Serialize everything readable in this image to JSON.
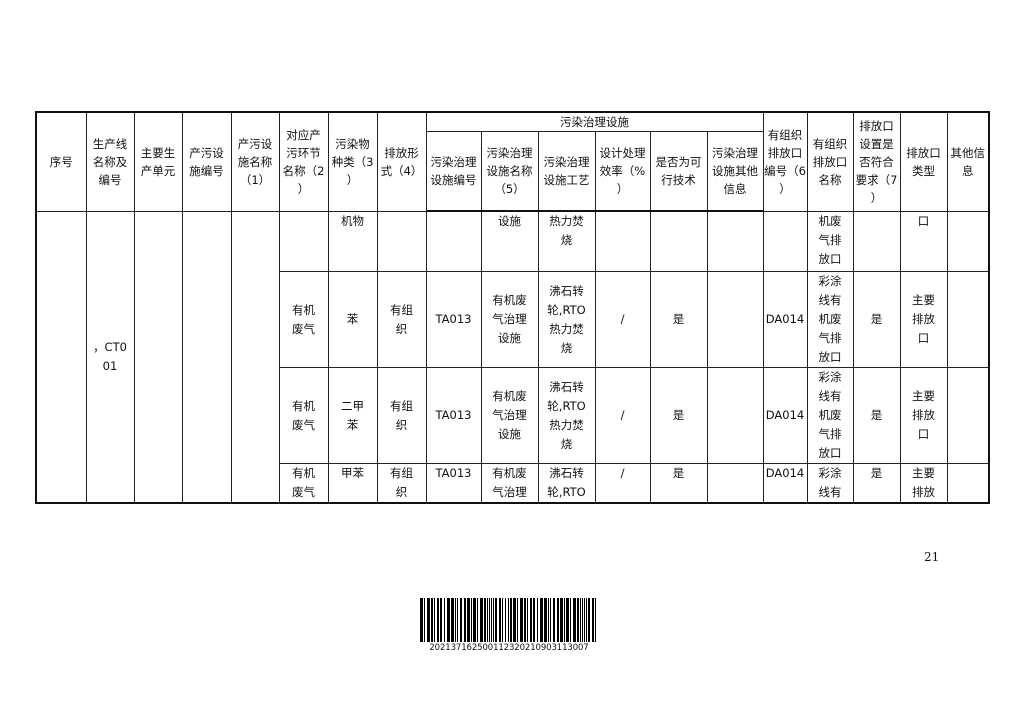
{
  "table": {
    "group_header": "污染治理设施",
    "headers": [
      "序号",
      "生产线\n名称及\n编号",
      "主要生\n产单元",
      "产污设\n施编号",
      "产污设\n施名称\n（1）",
      "对应产\n污环节\n名称（2\n）",
      "污染物\n种类（3\n）",
      "排放形\n式（4）",
      "污染治理\n设施编号",
      "污染治理\n设施名称\n（5）",
      "污染治理\n设施工艺",
      "设计处理\n效率（%\n）",
      "是否为可\n行技术",
      "污染治理\n设施其他\n信息",
      "有组织\n排放口\n编号（6\n）",
      "有组织\n排放口\n名称",
      "排放口\n设置是\n否符合\n要求（7\n）",
      "排放口\n类型",
      "其他信\n息"
    ],
    "production_line": "，CT0\n01",
    "rows": [
      [
        "",
        "机物",
        "",
        "",
        "设施",
        "热力焚\n烧",
        "",
        "",
        "",
        "",
        "机废\n气排\n放口",
        "",
        "口",
        ""
      ],
      [
        "有机\n废气",
        "苯",
        "有组\n织",
        "TA013",
        "有机废\n气治理\n设施",
        "沸石转\n轮,RTO\n热力焚\n烧",
        "/",
        "是",
        "",
        "DA014",
        "彩涂\n线有\n机废\n气排\n放口",
        "是",
        "主要\n排放\n口",
        ""
      ],
      [
        "有机\n废气",
        "二甲\n苯",
        "有组\n织",
        "TA013",
        "有机废\n气治理\n设施",
        "沸石转\n轮,RTO\n热力焚\n烧",
        "/",
        "是",
        "",
        "DA014",
        "彩涂\n线有\n机废\n气排\n放口",
        "是",
        "主要\n排放\n口",
        ""
      ],
      [
        "有机\n废气",
        "甲苯",
        "有组\n织",
        "TA013",
        "有机废\n气治理",
        "沸石转\n轮,RTO",
        "/",
        "是",
        "",
        "DA014",
        "彩涂\n线有",
        "是",
        "主要\n排放",
        ""
      ]
    ]
  },
  "page_number": "21",
  "barcode_text": "202137162500112320210903113007"
}
